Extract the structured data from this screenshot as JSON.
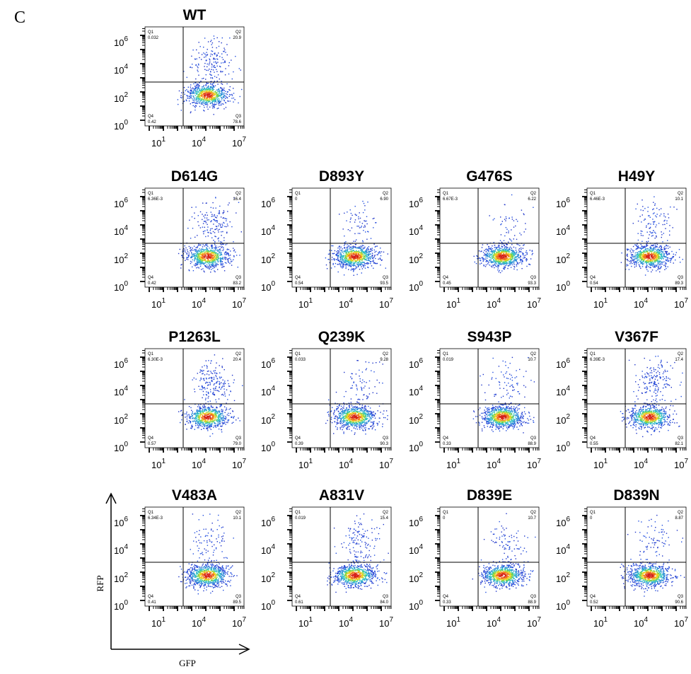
{
  "panel_label": "C",
  "axis_legend": {
    "x_label": "GFP",
    "y_label": "RFP"
  },
  "tick_labels": {
    "x": [
      {
        "base": "10",
        "exp": "1"
      },
      {
        "base": "10",
        "exp": "4"
      },
      {
        "base": "10",
        "exp": "7"
      }
    ],
    "y": [
      {
        "base": "10",
        "exp": "6"
      },
      {
        "base": "10",
        "exp": "4"
      },
      {
        "base": "10",
        "exp": "2"
      },
      {
        "base": "10",
        "exp": "0"
      }
    ]
  },
  "quadrant_names": {
    "q1": "Q1",
    "q2": "Q2",
    "q3": "Q3",
    "q4": "Q4"
  },
  "chart_data": [
    {
      "type": "scatter",
      "title": "WT",
      "quadrants": {
        "Q1": "0.032",
        "Q2": "20.9",
        "Q3": "78.6",
        "Q4": "0.42"
      }
    },
    {
      "type": "scatter",
      "title": "D614G",
      "quadrants": {
        "Q1": "6.36E-3",
        "Q2": "16.4",
        "Q3": "83.2",
        "Q4": "0.42"
      }
    },
    {
      "type": "scatter",
      "title": "D893Y",
      "quadrants": {
        "Q1": "0",
        "Q2": "6.90",
        "Q3": "93.5",
        "Q4": "0.54"
      }
    },
    {
      "type": "scatter",
      "title": "G476S",
      "quadrants": {
        "Q1": "6.67E-3",
        "Q2": "6.22",
        "Q3": "93.3",
        "Q4": "0.45"
      }
    },
    {
      "type": "scatter",
      "title": "H49Y",
      "quadrants": {
        "Q1": "6.46E-3",
        "Q2": "10.1",
        "Q3": "89.3",
        "Q4": "0.54"
      }
    },
    {
      "type": "scatter",
      "title": "P1263L",
      "quadrants": {
        "Q1": "6.30E-3",
        "Q2": "20.4",
        "Q3": "79.0",
        "Q4": "0.57"
      }
    },
    {
      "type": "scatter",
      "title": "Q239K",
      "quadrants": {
        "Q1": "0.033",
        "Q2": "9.28",
        "Q3": "90.3",
        "Q4": "0.39"
      }
    },
    {
      "type": "scatter",
      "title": "S943P",
      "quadrants": {
        "Q1": "0.019",
        "Q2": "10.7",
        "Q3": "88.9",
        "Q4": "0.33"
      }
    },
    {
      "type": "scatter",
      "title": "V367F",
      "quadrants": {
        "Q1": "6.39E-3",
        "Q2": "17.4",
        "Q3": "82.1",
        "Q4": "0.55"
      }
    },
    {
      "type": "scatter",
      "title": "V483A",
      "quadrants": {
        "Q1": "6.34E-3",
        "Q2": "10.1",
        "Q3": "89.5",
        "Q4": "0.41"
      }
    },
    {
      "type": "scatter",
      "title": "A831V",
      "quadrants": {
        "Q1": "0.019",
        "Q2": "15.4",
        "Q3": "84.0",
        "Q4": "0.61"
      }
    },
    {
      "type": "scatter",
      "title": "D839E",
      "quadrants": {
        "Q1": "0",
        "Q2": "10.7",
        "Q3": "88.9",
        "Q4": "0.33"
      }
    },
    {
      "type": "scatter",
      "title": "D839N",
      "quadrants": {
        "Q1": "0",
        "Q2": "8.87",
        "Q3": "90.6",
        "Q4": "0.52"
      }
    }
  ]
}
